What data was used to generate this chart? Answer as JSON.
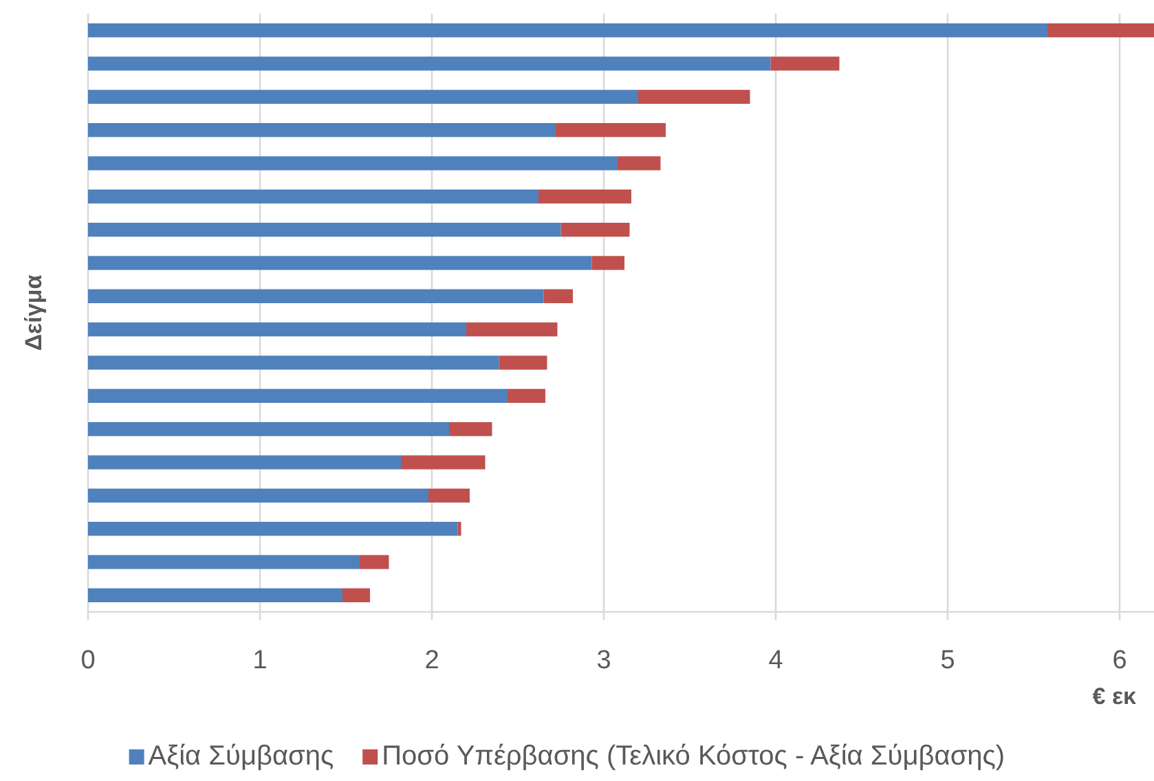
{
  "chart_data": {
    "type": "bar",
    "orientation": "horizontal",
    "stacked": true,
    "categories": [
      null,
      null,
      null,
      null,
      null,
      null,
      null,
      null,
      null,
      null,
      null,
      null,
      null,
      null,
      null,
      null,
      null,
      null
    ],
    "series": [
      {
        "name": "Αξία Σύμβασης",
        "color": "#4f81bd",
        "values": [
          5.58,
          3.97,
          3.2,
          2.72,
          3.08,
          2.62,
          2.75,
          2.93,
          2.65,
          2.2,
          2.39,
          2.44,
          2.1,
          1.82,
          1.98,
          2.15,
          1.58,
          1.48
        ]
      },
      {
        "name": "Ποσό Υπέρβασης (Τελικό Κόστος - Αξία Σύμβασης)",
        "color": "#c0504d",
        "values": [
          0.62,
          0.4,
          0.65,
          0.64,
          0.25,
          0.54,
          0.4,
          0.19,
          0.17,
          0.53,
          0.28,
          0.22,
          0.25,
          0.49,
          0.24,
          0.02,
          0.17,
          0.16
        ]
      }
    ],
    "xlim": [
      0,
      6.2
    ],
    "xticks": [
      0,
      1,
      2,
      3,
      4,
      5,
      6
    ],
    "xlabel": "€ εκ",
    "ylabel": "Δείγμα",
    "grid": "x",
    "legend": "bottom"
  }
}
